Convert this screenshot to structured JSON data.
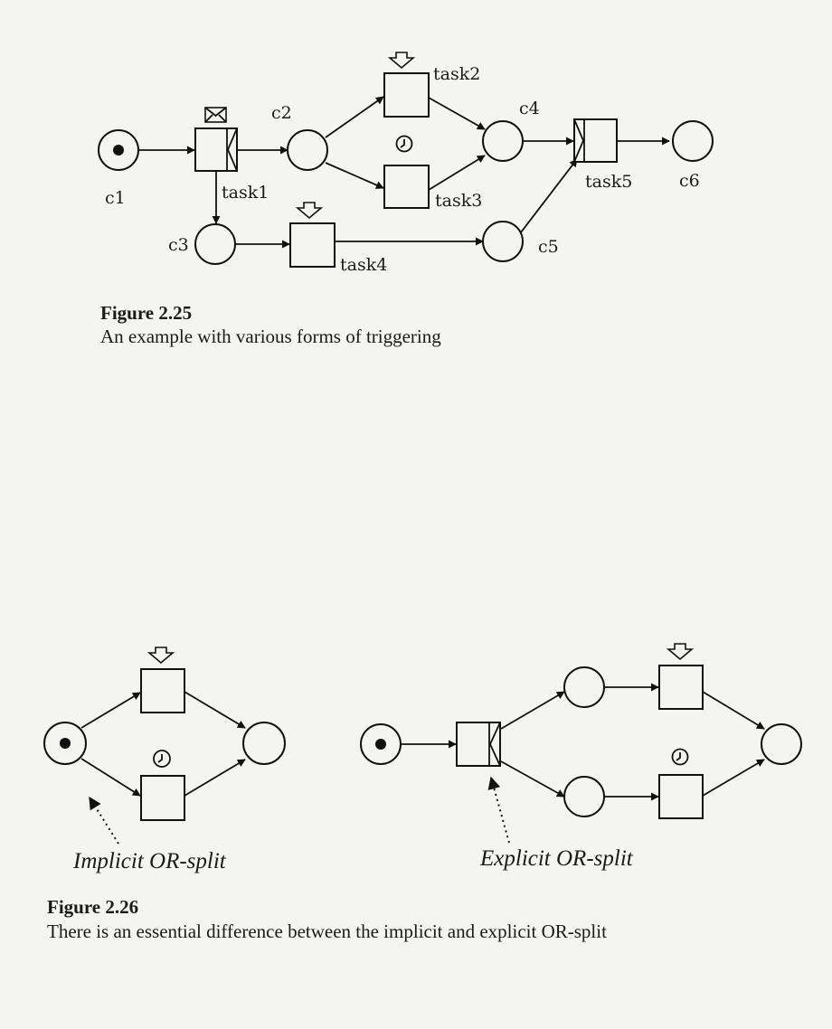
{
  "figure_2_25": {
    "places": {
      "c1": "c1",
      "c2": "c2",
      "c3": "c3",
      "c4": "c4",
      "c5": "c5",
      "c6": "c6"
    },
    "tasks": {
      "task1": "task1",
      "task2": "task2",
      "task3": "task3",
      "task4": "task4",
      "task5": "task5"
    },
    "caption_title": "Figure 2.25",
    "caption_text": "An example with various forms of triggering"
  },
  "figure_2_26": {
    "implicit_label": "Implicit OR-split",
    "explicit_label": "Explicit OR-split",
    "caption_title": "Figure 2.26",
    "caption_text": "There is an essential difference between the implicit and explicit OR-split"
  },
  "icons": {
    "resource_trigger": "down-arrow-icon",
    "external_trigger": "envelope-icon",
    "time_trigger": "clock-icon"
  },
  "colors": {
    "ink": "#111111",
    "paper": "#f4f4f2"
  }
}
